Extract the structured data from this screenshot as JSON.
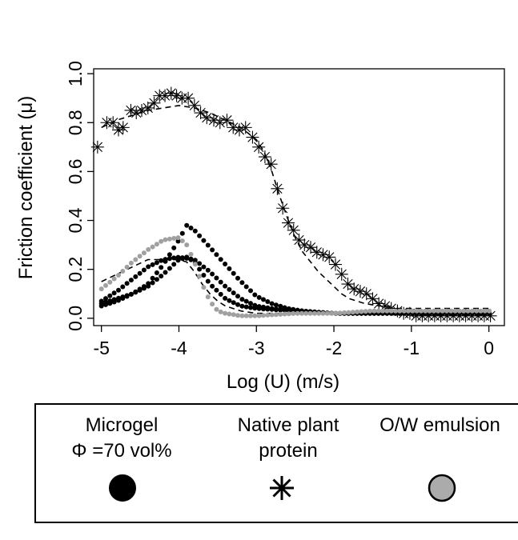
{
  "chart_data": {
    "type": "scatter",
    "xlabel": "Log (U) (m/s)",
    "ylabel": "Friction coefficient (μ)",
    "xlim": [
      -5.1,
      0.2
    ],
    "ylim": [
      -0.03,
      1.02
    ],
    "xticks": [
      "-5",
      "-4",
      "-3",
      "-2",
      "-1",
      "0"
    ],
    "yticks": [
      "0.0",
      "0.2",
      "0.4",
      "0.6",
      "0.8",
      "1.0"
    ],
    "grid": false,
    "legend_position": "bottom",
    "series": [
      {
        "key": "native",
        "marker": "asterisk",
        "color": "#000000",
        "points": [
          [
            -5.05,
            0.7
          ],
          [
            -4.93,
            0.8
          ],
          [
            -4.85,
            0.8
          ],
          [
            -4.78,
            0.77
          ],
          [
            -4.72,
            0.78
          ],
          [
            -4.62,
            0.85
          ],
          [
            -4.55,
            0.84
          ],
          [
            -4.48,
            0.85
          ],
          [
            -4.4,
            0.86
          ],
          [
            -4.32,
            0.88
          ],
          [
            -4.25,
            0.91
          ],
          [
            -4.18,
            0.91
          ],
          [
            -4.1,
            0.92
          ],
          [
            -4.03,
            0.91
          ],
          [
            -3.96,
            0.9
          ],
          [
            -3.88,
            0.9
          ],
          [
            -3.8,
            0.87
          ],
          [
            -3.72,
            0.84
          ],
          [
            -3.64,
            0.82
          ],
          [
            -3.55,
            0.81
          ],
          [
            -3.47,
            0.8
          ],
          [
            -3.38,
            0.81
          ],
          [
            -3.3,
            0.78
          ],
          [
            -3.22,
            0.77
          ],
          [
            -3.14,
            0.78
          ],
          [
            -3.05,
            0.74
          ],
          [
            -2.97,
            0.7
          ],
          [
            -2.89,
            0.66
          ],
          [
            -2.81,
            0.63
          ],
          [
            -2.73,
            0.53
          ],
          [
            -2.66,
            0.45
          ],
          [
            -2.59,
            0.39
          ],
          [
            -2.52,
            0.36
          ],
          [
            -2.45,
            0.32
          ],
          [
            -2.38,
            0.3
          ],
          [
            -2.3,
            0.29
          ],
          [
            -2.22,
            0.27
          ],
          [
            -2.14,
            0.26
          ],
          [
            -2.06,
            0.25
          ],
          [
            -1.98,
            0.22
          ],
          [
            -1.9,
            0.18
          ],
          [
            -1.82,
            0.14
          ],
          [
            -1.74,
            0.12
          ],
          [
            -1.66,
            0.11
          ],
          [
            -1.58,
            0.1
          ],
          [
            -1.5,
            0.08
          ],
          [
            -1.42,
            0.06
          ],
          [
            -1.34,
            0.05
          ],
          [
            -1.26,
            0.04
          ],
          [
            -1.18,
            0.03
          ],
          [
            -1.1,
            0.02
          ],
          [
            -1.02,
            0.02
          ],
          [
            -0.94,
            0.01
          ],
          [
            -0.86,
            0.01
          ],
          [
            -0.78,
            0.01
          ],
          [
            -0.7,
            0.01
          ],
          [
            -0.62,
            0.01
          ],
          [
            -0.54,
            0.01
          ],
          [
            -0.46,
            0.01
          ],
          [
            -0.38,
            0.01
          ],
          [
            -0.3,
            0.01
          ],
          [
            -0.22,
            0.01
          ],
          [
            -0.14,
            0.01
          ],
          [
            -0.06,
            0.01
          ],
          [
            0.02,
            0.01
          ]
        ],
        "fit": [
          [
            -5.0,
            0.78
          ],
          [
            -4.8,
            0.81
          ],
          [
            -4.6,
            0.83
          ],
          [
            -4.4,
            0.85
          ],
          [
            -4.2,
            0.86
          ],
          [
            -4.0,
            0.87
          ],
          [
            -3.8,
            0.86
          ],
          [
            -3.6,
            0.84
          ],
          [
            -3.4,
            0.81
          ],
          [
            -3.2,
            0.78
          ],
          [
            -3.0,
            0.73
          ],
          [
            -2.9,
            0.68
          ],
          [
            -2.8,
            0.6
          ],
          [
            -2.7,
            0.5
          ],
          [
            -2.6,
            0.41
          ],
          [
            -2.5,
            0.33
          ],
          [
            -2.4,
            0.27
          ],
          [
            -2.3,
            0.23
          ],
          [
            -2.2,
            0.19
          ],
          [
            -2.1,
            0.16
          ],
          [
            -2.0,
            0.13
          ],
          [
            -1.9,
            0.1
          ],
          [
            -1.8,
            0.08
          ],
          [
            -1.6,
            0.06
          ],
          [
            -1.4,
            0.05
          ],
          [
            -1.2,
            0.04
          ],
          [
            -1.0,
            0.04
          ],
          [
            -0.8,
            0.04
          ],
          [
            -0.6,
            0.04
          ],
          [
            -0.4,
            0.04
          ],
          [
            -0.2,
            0.04
          ],
          [
            0.0,
            0.04
          ]
        ]
      },
      {
        "key": "microgel",
        "marker": "circle",
        "color": "#000000",
        "curves": [
          [
            [
              -5.0,
              0.05
            ],
            [
              -4.8,
              0.07
            ],
            [
              -4.6,
              0.1
            ],
            [
              -4.4,
              0.14
            ],
            [
              -4.2,
              0.22
            ],
            [
              -4.0,
              0.32
            ],
            [
              -3.9,
              0.38
            ],
            [
              -3.8,
              0.36
            ],
            [
              -3.6,
              0.29
            ],
            [
              -3.4,
              0.22
            ],
            [
              -3.2,
              0.15
            ],
            [
              -3.0,
              0.09
            ],
            [
              -2.8,
              0.06
            ],
            [
              -2.6,
              0.04
            ],
            [
              -2.4,
              0.03
            ],
            [
              -2.0,
              0.02
            ],
            [
              -1.5,
              0.02
            ],
            [
              -1.0,
              0.02
            ],
            [
              -0.5,
              0.02
            ],
            [
              0.0,
              0.02
            ]
          ],
          [
            [
              -5.0,
              0.07
            ],
            [
              -4.8,
              0.11
            ],
            [
              -4.6,
              0.16
            ],
            [
              -4.4,
              0.21
            ],
            [
              -4.2,
              0.24
            ],
            [
              -4.0,
              0.25
            ],
            [
              -3.8,
              0.24
            ],
            [
              -3.6,
              0.19
            ],
            [
              -3.4,
              0.13
            ],
            [
              -3.2,
              0.08
            ],
            [
              -3.0,
              0.05
            ],
            [
              -2.8,
              0.04
            ],
            [
              -2.5,
              0.03
            ],
            [
              -2.0,
              0.02
            ],
            [
              -1.5,
              0.02
            ],
            [
              -1.0,
              0.02
            ],
            [
              -0.5,
              0.02
            ],
            [
              0.0,
              0.02
            ]
          ],
          [
            [
              -5.0,
              0.06
            ],
            [
              -4.8,
              0.08
            ],
            [
              -4.6,
              0.1
            ],
            [
              -4.4,
              0.13
            ],
            [
              -4.2,
              0.18
            ],
            [
              -4.0,
              0.24
            ],
            [
              -3.9,
              0.25
            ],
            [
              -3.8,
              0.23
            ],
            [
              -3.6,
              0.14
            ],
            [
              -3.4,
              0.08
            ],
            [
              -3.2,
              0.05
            ],
            [
              -3.0,
              0.04
            ],
            [
              -2.5,
              0.03
            ],
            [
              -2.0,
              0.02
            ],
            [
              -1.0,
              0.02
            ],
            [
              0.0,
              0.02
            ]
          ]
        ],
        "fit": [
          [
            -5.0,
            0.15
          ],
          [
            -4.8,
            0.18
          ],
          [
            -4.6,
            0.21
          ],
          [
            -4.4,
            0.24
          ],
          [
            -4.2,
            0.24
          ],
          [
            -4.0,
            0.24
          ],
          [
            -3.9,
            0.23
          ],
          [
            -3.8,
            0.19
          ],
          [
            -3.7,
            0.14
          ],
          [
            -3.6,
            0.1
          ],
          [
            -3.5,
            0.07
          ],
          [
            -3.4,
            0.05
          ],
          [
            -3.2,
            0.03
          ],
          [
            -3.0,
            0.02
          ],
          [
            -2.5,
            0.02
          ],
          [
            -2.0,
            0.02
          ],
          [
            -1.0,
            0.02
          ],
          [
            0.0,
            0.02
          ]
        ]
      },
      {
        "key": "emulsion",
        "marker": "circle",
        "color": "#a0a0a0",
        "curves": [
          [
            [
              -5.0,
              0.12
            ],
            [
              -4.8,
              0.17
            ],
            [
              -4.6,
              0.23
            ],
            [
              -4.4,
              0.28
            ],
            [
              -4.2,
              0.32
            ],
            [
              -4.0,
              0.33
            ],
            [
              -3.9,
              0.3
            ],
            [
              -3.8,
              0.23
            ],
            [
              -3.7,
              0.14
            ],
            [
              -3.6,
              0.07
            ],
            [
              -3.5,
              0.03
            ],
            [
              -3.4,
              0.02
            ],
            [
              -3.2,
              0.01
            ],
            [
              -3.0,
              0.01
            ],
            [
              -2.5,
              0.02
            ],
            [
              -2.0,
              0.02
            ],
            [
              -1.5,
              0.03
            ],
            [
              -1.0,
              0.03
            ],
            [
              -0.5,
              0.03
            ],
            [
              0.0,
              0.03
            ]
          ]
        ]
      }
    ]
  },
  "legend": {
    "items": [
      {
        "key": "microgel",
        "line1": "Microgel",
        "line2": "Φ =70 vol%",
        "fill": "#000000"
      },
      {
        "key": "native",
        "line1": "Native plant",
        "line2": "protein"
      },
      {
        "key": "emulsion",
        "line1": "O/W emulsion",
        "line2": "",
        "fill": "#ababab"
      }
    ]
  }
}
